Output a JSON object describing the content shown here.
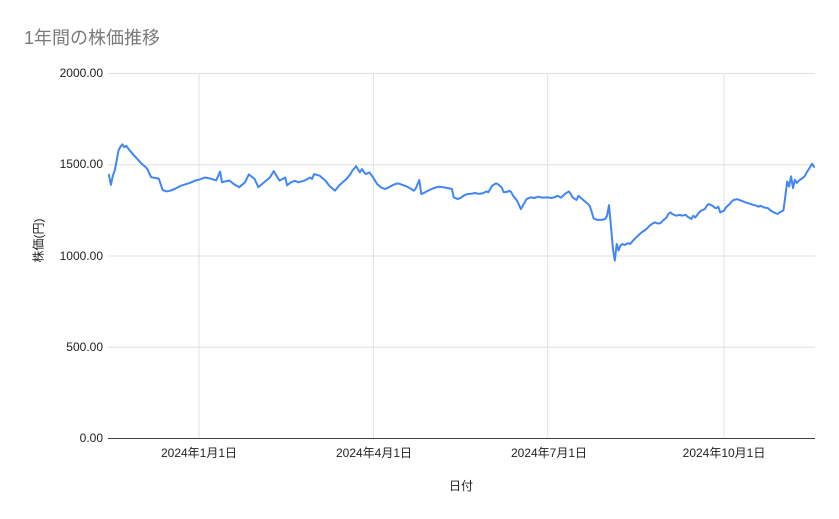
{
  "chart_data": {
    "type": "line",
    "title": "1年間の株価推移",
    "xlabel": "日付",
    "ylabel": "株価(円)",
    "ylim": [
      0,
      2000
    ],
    "grid": true,
    "legend": "none",
    "y_axis": {
      "tick_values": [
        0,
        500,
        1000,
        1500,
        2000
      ],
      "tick_labels": [
        "0.00",
        "500.00",
        "1000.00",
        "1500.00",
        "2000.00"
      ]
    },
    "x_axis": {
      "tick_labels": [
        "2024年1月1日",
        "2024年4月1日",
        "2024年7月1日",
        "2024年10月1日"
      ],
      "tick_day_offsets": [
        47,
        138,
        229,
        321
      ],
      "domain_days": [
        0,
        368
      ]
    },
    "series": [
      {
        "name": "株価",
        "color": "#4285f4",
        "points": [
          [
            0,
            1445
          ],
          [
            1,
            1390
          ],
          [
            2,
            1438
          ],
          [
            3,
            1468
          ],
          [
            4,
            1520
          ],
          [
            5,
            1578
          ],
          [
            6,
            1598
          ],
          [
            7,
            1612
          ],
          [
            8,
            1596
          ],
          [
            9,
            1604
          ],
          [
            11,
            1577
          ],
          [
            13,
            1552
          ],
          [
            15,
            1530
          ],
          [
            17,
            1506
          ],
          [
            19,
            1488
          ],
          [
            20,
            1477
          ],
          [
            22,
            1432
          ],
          [
            24,
            1428
          ],
          [
            26,
            1424
          ],
          [
            28,
            1362
          ],
          [
            30,
            1354
          ],
          [
            32,
            1358
          ],
          [
            34,
            1366
          ],
          [
            36,
            1377
          ],
          [
            38,
            1387
          ],
          [
            41,
            1396
          ],
          [
            43,
            1404
          ],
          [
            45,
            1413
          ],
          [
            47,
            1418
          ],
          [
            50,
            1430
          ],
          [
            53,
            1424
          ],
          [
            56,
            1414
          ],
          [
            58,
            1462
          ],
          [
            59,
            1404
          ],
          [
            61,
            1410
          ],
          [
            63,
            1413
          ],
          [
            65,
            1395
          ],
          [
            68,
            1377
          ],
          [
            71,
            1404
          ],
          [
            73,
            1447
          ],
          [
            76,
            1422
          ],
          [
            78,
            1377
          ],
          [
            81,
            1404
          ],
          [
            84,
            1430
          ],
          [
            86,
            1465
          ],
          [
            89,
            1413
          ],
          [
            92,
            1430
          ],
          [
            93,
            1387
          ],
          [
            95,
            1404
          ],
          [
            97,
            1412
          ],
          [
            99,
            1404
          ],
          [
            102,
            1413
          ],
          [
            105,
            1430
          ],
          [
            106,
            1422
          ],
          [
            107,
            1449
          ],
          [
            110,
            1440
          ],
          [
            111,
            1430
          ],
          [
            113,
            1413
          ],
          [
            115,
            1385
          ],
          [
            118,
            1358
          ],
          [
            120,
            1385
          ],
          [
            122,
            1404
          ],
          [
            124,
            1422
          ],
          [
            126,
            1449
          ],
          [
            127,
            1467
          ],
          [
            129,
            1492
          ],
          [
            131,
            1458
          ],
          [
            132,
            1476
          ],
          [
            134,
            1449
          ],
          [
            136,
            1458
          ],
          [
            138,
            1428
          ],
          [
            140,
            1394
          ],
          [
            142,
            1376
          ],
          [
            144,
            1367
          ],
          [
            146,
            1376
          ],
          [
            148,
            1388
          ],
          [
            150,
            1396
          ],
          [
            151,
            1398
          ],
          [
            153,
            1390
          ],
          [
            155,
            1383
          ],
          [
            157,
            1372
          ],
          [
            159,
            1358
          ],
          [
            160,
            1367
          ],
          [
            162,
            1416
          ],
          [
            163,
            1339
          ],
          [
            165,
            1349
          ],
          [
            167,
            1360
          ],
          [
            169,
            1370
          ],
          [
            172,
            1380
          ],
          [
            175,
            1376
          ],
          [
            177,
            1372
          ],
          [
            179,
            1367
          ],
          [
            180,
            1321
          ],
          [
            182,
            1312
          ],
          [
            184,
            1321
          ],
          [
            185,
            1330
          ],
          [
            187,
            1339
          ],
          [
            189,
            1341
          ],
          [
            191,
            1345
          ],
          [
            193,
            1340
          ],
          [
            195,
            1343
          ],
          [
            197,
            1354
          ],
          [
            198,
            1349
          ],
          [
            200,
            1385
          ],
          [
            202,
            1398
          ],
          [
            203,
            1394
          ],
          [
            205,
            1376
          ],
          [
            206,
            1349
          ],
          [
            208,
            1352
          ],
          [
            209,
            1358
          ],
          [
            210,
            1349
          ],
          [
            211,
            1330
          ],
          [
            213,
            1303
          ],
          [
            215,
            1257
          ],
          [
            217,
            1294
          ],
          [
            218,
            1312
          ],
          [
            220,
            1321
          ],
          [
            222,
            1318
          ],
          [
            224,
            1325
          ],
          [
            226,
            1320
          ],
          [
            229,
            1321
          ],
          [
            231,
            1318
          ],
          [
            233,
            1324
          ],
          [
            234,
            1330
          ],
          [
            236,
            1320
          ],
          [
            238,
            1340
          ],
          [
            240,
            1354
          ],
          [
            241,
            1340
          ],
          [
            242,
            1321
          ],
          [
            244,
            1307
          ],
          [
            245,
            1330
          ],
          [
            246,
            1321
          ],
          [
            248,
            1303
          ],
          [
            250,
            1285
          ],
          [
            251,
            1272
          ],
          [
            252,
            1240
          ],
          [
            253,
            1205
          ],
          [
            255,
            1198
          ],
          [
            257,
            1198
          ],
          [
            259,
            1203
          ],
          [
            260,
            1221
          ],
          [
            261,
            1279
          ],
          [
            262,
            1160
          ],
          [
            263,
            1040
          ],
          [
            264,
            975
          ],
          [
            265,
            1066
          ],
          [
            266,
            1030
          ],
          [
            267,
            1058
          ],
          [
            268,
            1066
          ],
          [
            269,
            1060
          ],
          [
            270,
            1066
          ],
          [
            271,
            1070
          ],
          [
            272,
            1066
          ],
          [
            273,
            1078
          ],
          [
            274,
            1090
          ],
          [
            275,
            1100
          ],
          [
            276,
            1110
          ],
          [
            277,
            1120
          ],
          [
            278,
            1130
          ],
          [
            280,
            1143
          ],
          [
            281,
            1153
          ],
          [
            282,
            1165
          ],
          [
            283,
            1172
          ],
          [
            284,
            1180
          ],
          [
            285,
            1184
          ],
          [
            286,
            1180
          ],
          [
            287,
            1178
          ],
          [
            288,
            1182
          ],
          [
            289,
            1193
          ],
          [
            291,
            1211
          ],
          [
            292,
            1230
          ],
          [
            293,
            1239
          ],
          [
            294,
            1230
          ],
          [
            296,
            1221
          ],
          [
            298,
            1225
          ],
          [
            299,
            1221
          ],
          [
            301,
            1226
          ],
          [
            302,
            1215
          ],
          [
            304,
            1203
          ],
          [
            305,
            1221
          ],
          [
            306,
            1211
          ],
          [
            308,
            1239
          ],
          [
            309,
            1248
          ],
          [
            311,
            1257
          ],
          [
            312,
            1275
          ],
          [
            313,
            1285
          ],
          [
            315,
            1275
          ],
          [
            316,
            1266
          ],
          [
            317,
            1262
          ],
          [
            318,
            1270
          ],
          [
            319,
            1239
          ],
          [
            321,
            1248
          ],
          [
            322,
            1266
          ],
          [
            324,
            1285
          ],
          [
            325,
            1299
          ],
          [
            326,
            1307
          ],
          [
            328,
            1312
          ],
          [
            329,
            1307
          ],
          [
            331,
            1299
          ],
          [
            332,
            1294
          ],
          [
            334,
            1288
          ],
          [
            336,
            1281
          ],
          [
            338,
            1275
          ],
          [
            339,
            1270
          ],
          [
            340,
            1275
          ],
          [
            342,
            1266
          ],
          [
            344,
            1262
          ],
          [
            345,
            1252
          ],
          [
            347,
            1239
          ],
          [
            349,
            1230
          ],
          [
            350,
            1239
          ],
          [
            351,
            1244
          ],
          [
            352,
            1250
          ],
          [
            353,
            1326
          ],
          [
            354,
            1409
          ],
          [
            355,
            1381
          ],
          [
            356,
            1436
          ],
          [
            357,
            1372
          ],
          [
            358,
            1418
          ],
          [
            359,
            1400
          ],
          [
            360,
            1412
          ],
          [
            361,
            1420
          ],
          [
            362,
            1427
          ],
          [
            363,
            1436
          ],
          [
            364,
            1454
          ],
          [
            365,
            1472
          ],
          [
            366,
            1488
          ],
          [
            367,
            1505
          ],
          [
            368,
            1488
          ]
        ]
      }
    ]
  },
  "colors": {
    "accent": "#4285f4",
    "title_text": "#7a7a7a",
    "axis_text": "#222222",
    "gridline": "#e0e0e0",
    "axis_line": "#424242",
    "background": "#ffffff"
  }
}
